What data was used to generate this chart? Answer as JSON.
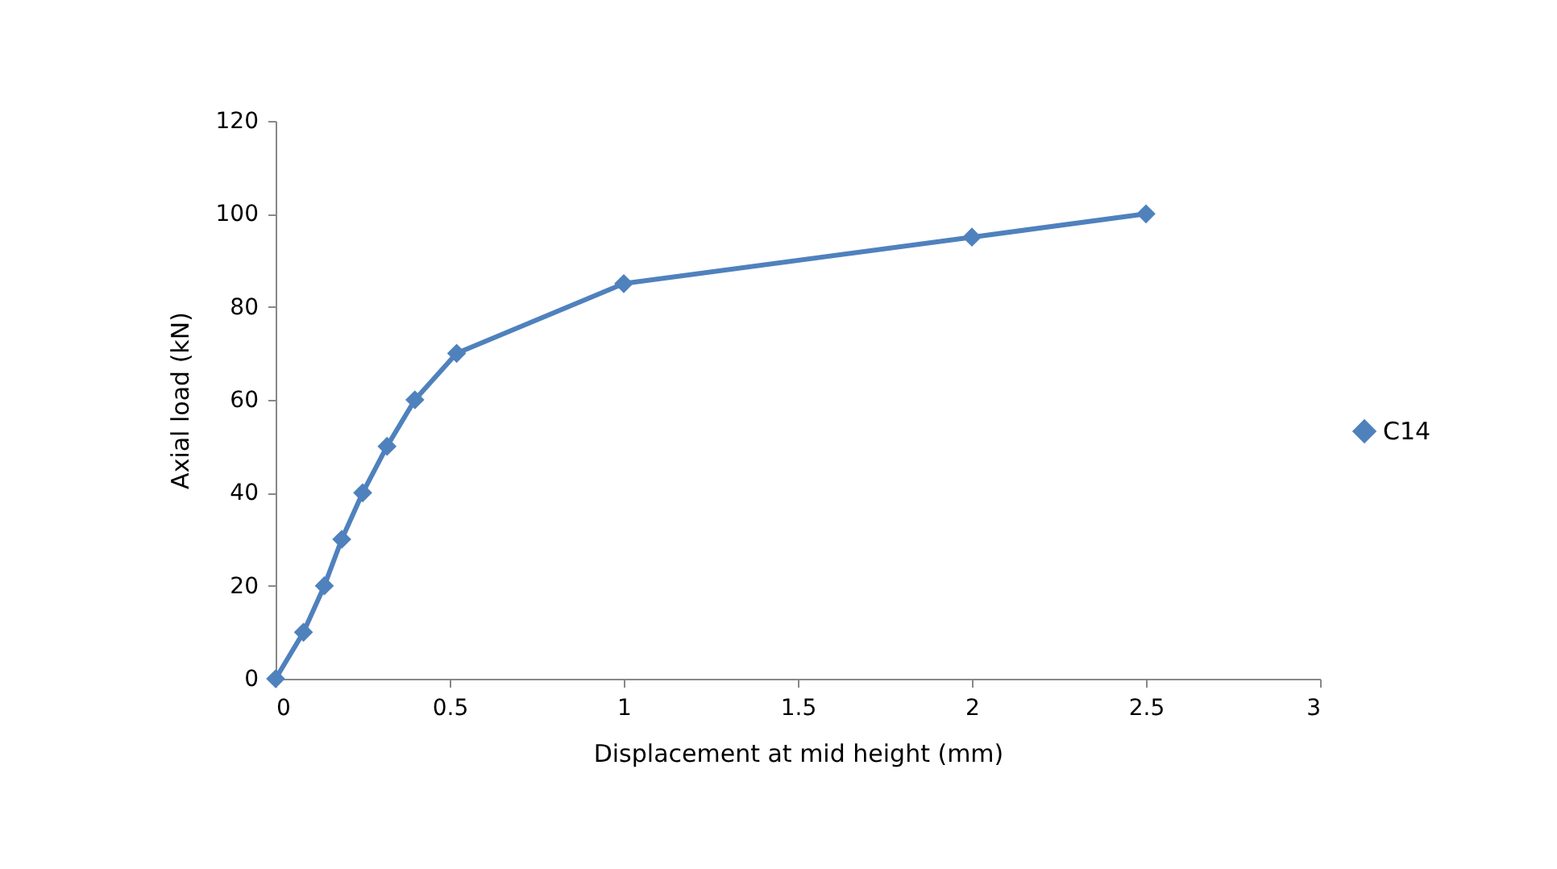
{
  "chart_data": {
    "type": "line",
    "xlabel": "Displacement at mid height (mm)",
    "ylabel": "Axial load (kN)",
    "x": [
      0,
      0.08,
      0.14,
      0.19,
      0.25,
      0.32,
      0.4,
      0.52,
      1,
      2,
      2.5
    ],
    "series": [
      {
        "name": "C14",
        "color": "#4f81bd",
        "values": [
          0,
          10,
          20,
          30,
          40,
          50,
          60,
          70,
          85,
          95,
          100
        ]
      }
    ],
    "xlim": [
      0,
      3
    ],
    "xticks": [
      0,
      0.5,
      1,
      1.5,
      2,
      2.5,
      3
    ],
    "ylim": [
      0,
      120
    ],
    "yticks": [
      0,
      20,
      40,
      60,
      80,
      100,
      120
    ],
    "grid": false,
    "legend": "right",
    "marker": "diamond",
    "line_style": "solid"
  }
}
